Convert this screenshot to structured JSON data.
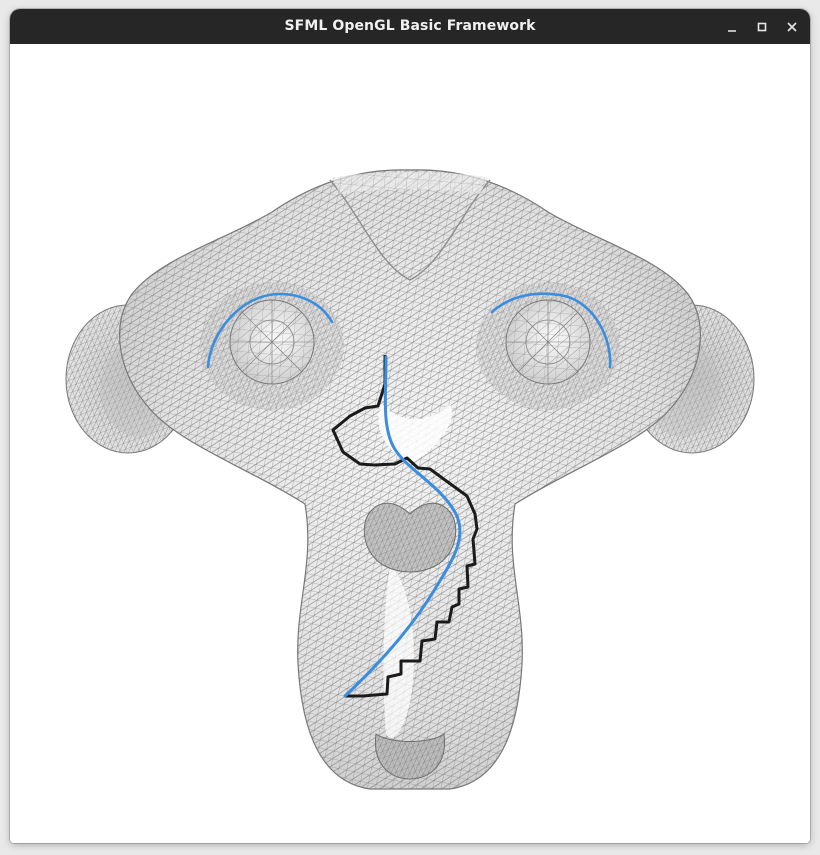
{
  "window": {
    "title": "SFML OpenGL Basic Framework"
  },
  "titlebar_buttons": [
    {
      "name": "minimize-button",
      "icon": "minimize-icon"
    },
    {
      "name": "maximize-button",
      "icon": "maximize-icon"
    },
    {
      "name": "close-button",
      "icon": "close-icon"
    }
  ],
  "scene": {
    "model": "monkey-head-wireframe",
    "mesh_color": "#6e6e6e",
    "surface_color": "#e6e6e6",
    "highlight_color": "#ffffff",
    "blue_path_color": "#3a8ddf",
    "black_path_color": "#1b1b1b"
  }
}
